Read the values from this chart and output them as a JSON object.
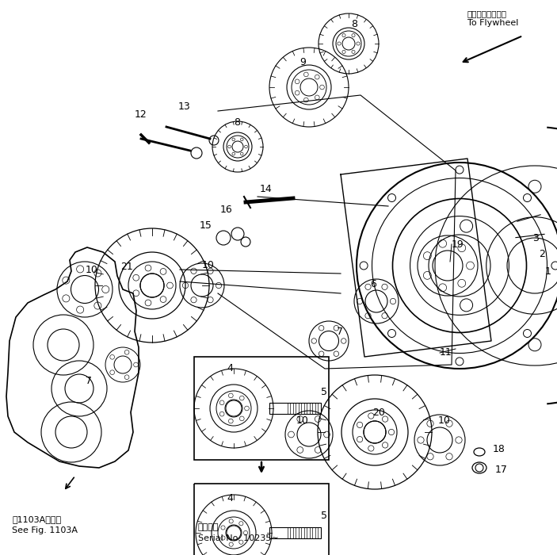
{
  "bg_color": "#ffffff",
  "line_color": "#000000",
  "title_jp": "フライホイールへ",
  "title_en": "To Flywheel",
  "bottom_left_jp": "第1103A図参照",
  "bottom_left_en": "See Fig. 1103A",
  "bottom_right_jp": "適用号機",
  "bottom_right_en": "Serial No. 10235∼",
  "figsize": [
    7.03,
    7.0
  ],
  "dpi": 100
}
